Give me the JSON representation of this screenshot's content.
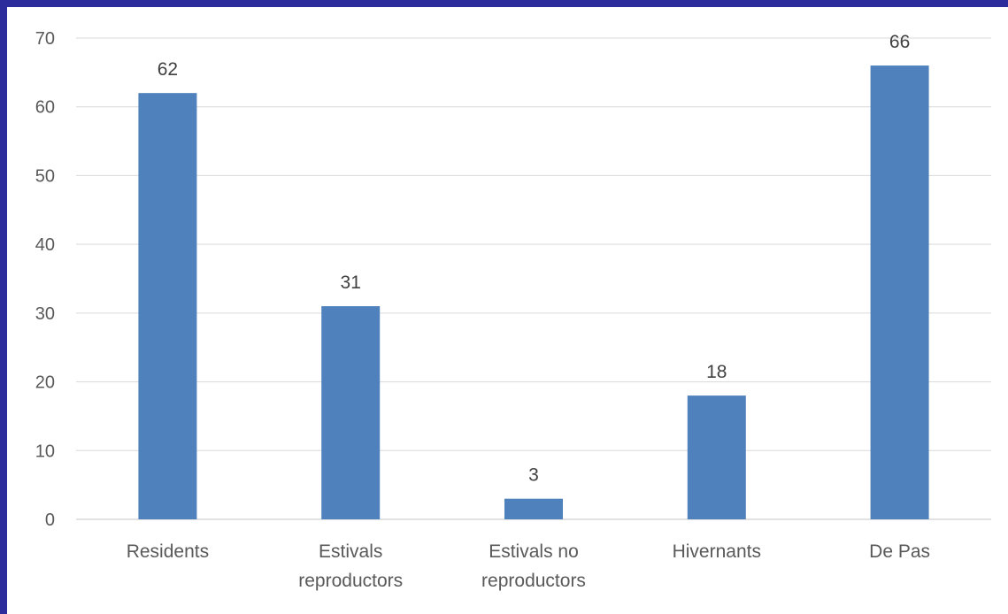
{
  "chart_data": {
    "type": "bar",
    "title": "",
    "xlabel": "",
    "ylabel": "",
    "categories": [
      [
        "Residents"
      ],
      [
        "Estivals",
        "reproductors"
      ],
      [
        "Estivals no",
        "reproductors"
      ],
      [
        "Hivernants"
      ],
      [
        "De Pas"
      ]
    ],
    "values": [
      62,
      31,
      3,
      18,
      66
    ],
    "ylim": [
      0,
      70
    ],
    "yticks": [
      0,
      10,
      20,
      30,
      40,
      50,
      60,
      70
    ],
    "grid": true,
    "data_labels": true,
    "bar_color": "#4f81bd",
    "frame_color": "#2c2c9c"
  }
}
